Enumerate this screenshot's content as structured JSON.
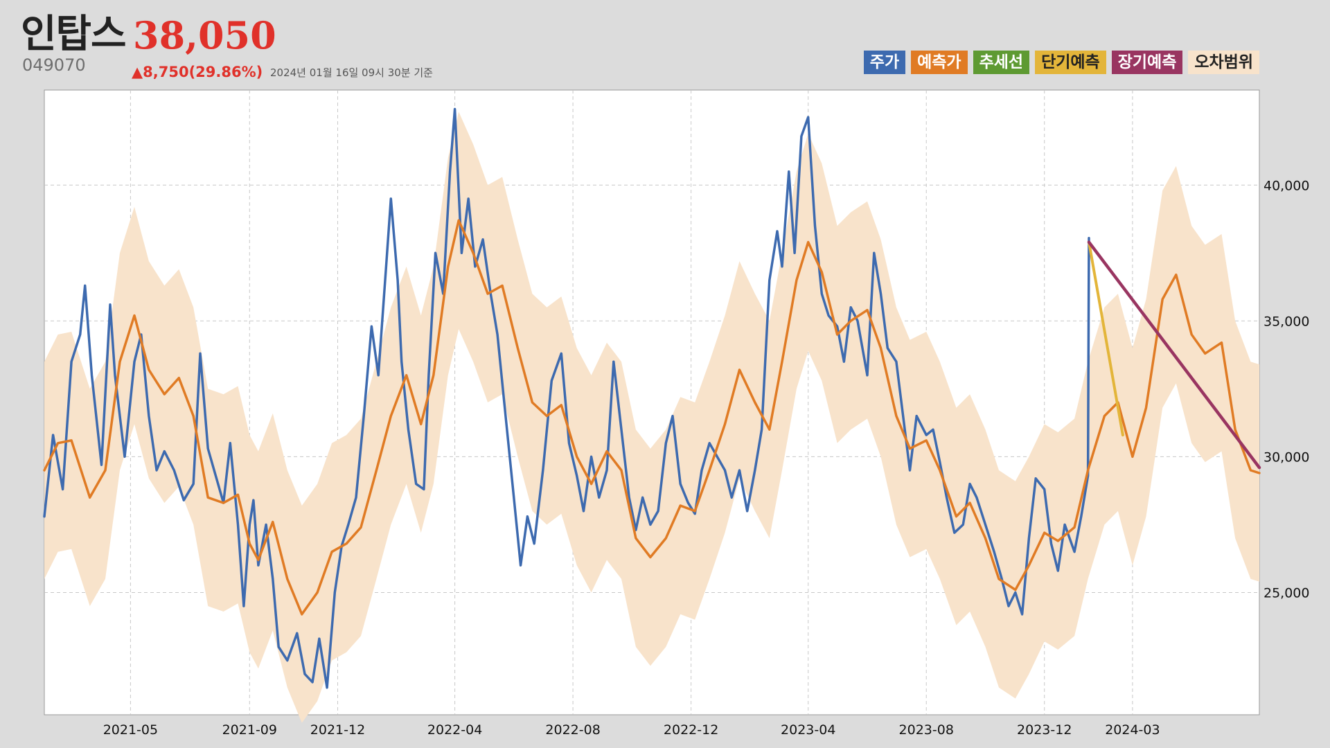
{
  "header": {
    "name": "인탑스",
    "price": "38,050",
    "code": "049070",
    "change": "▲8,750(29.86%)",
    "basis": "2024년 01월 16일 09시 30분 기준"
  },
  "legend": [
    {
      "label": "주가",
      "color": "#3d6aaf",
      "text_color": "#ffffff"
    },
    {
      "label": "예측가",
      "color": "#e07b24",
      "text_color": "#ffffff"
    },
    {
      "label": "추세선",
      "color": "#5e9a32",
      "text_color": "#ffffff"
    },
    {
      "label": "단기예측",
      "color": "#e3b53a",
      "text_color": "#222222"
    },
    {
      "label": "장기예측",
      "color": "#993561",
      "text_color": "#ffffff"
    },
    {
      "label": "오차범위",
      "color": "#f8e3cb",
      "text_color": "#222222"
    }
  ],
  "colors": {
    "price": "#3d6aaf",
    "forecast": "#e07b24",
    "band": "#f8e3cb",
    "short_term": "#e3b53a",
    "long_term": "#993561"
  },
  "chart_data": {
    "type": "line",
    "x_type": "date",
    "xlim": [
      "2021-02-01",
      "2024-07-10"
    ],
    "ylim": [
      20500,
      43500
    ],
    "y_ticks": [
      25000,
      30000,
      35000,
      40000
    ],
    "y_tick_labels": [
      "25,000",
      "30,000",
      "35,000",
      "40,000"
    ],
    "x_ticks": [
      "2021-05-01",
      "2021-09-01",
      "2021-12-01",
      "2022-04-01",
      "2022-08-01",
      "2022-12-01",
      "2023-04-01",
      "2023-08-01",
      "2023-12-01",
      "2024-03-01"
    ],
    "x_tick_labels": [
      "2021-05",
      "2021-09",
      "2021-12",
      "2022-04",
      "2022-08",
      "2022-12",
      "2023-04",
      "2023-08",
      "2023-12",
      "2024-03"
    ],
    "grid": true,
    "legend_position": "top-right",
    "series": [
      {
        "name": "주가",
        "points": [
          [
            "2021-02-01",
            27800
          ],
          [
            "2021-02-10",
            30800
          ],
          [
            "2021-02-20",
            28800
          ],
          [
            "2021-03-01",
            33500
          ],
          [
            "2021-03-10",
            34500
          ],
          [
            "2021-03-15",
            36300
          ],
          [
            "2021-03-22",
            33000
          ],
          [
            "2021-04-01",
            29700
          ],
          [
            "2021-04-10",
            35600
          ],
          [
            "2021-04-15",
            33000
          ],
          [
            "2021-04-25",
            30000
          ],
          [
            "2021-05-05",
            33500
          ],
          [
            "2021-05-12",
            34500
          ],
          [
            "2021-05-20",
            31500
          ],
          [
            "2021-05-28",
            29500
          ],
          [
            "2021-06-05",
            30200
          ],
          [
            "2021-06-15",
            29500
          ],
          [
            "2021-06-25",
            28400
          ],
          [
            "2021-07-05",
            29000
          ],
          [
            "2021-07-12",
            33800
          ],
          [
            "2021-07-20",
            30300
          ],
          [
            "2021-07-28",
            29300
          ],
          [
            "2021-08-05",
            28300
          ],
          [
            "2021-08-12",
            30500
          ],
          [
            "2021-08-20",
            27500
          ],
          [
            "2021-08-26",
            24500
          ],
          [
            "2021-09-01",
            27500
          ],
          [
            "2021-09-05",
            28400
          ],
          [
            "2021-09-10",
            26000
          ],
          [
            "2021-09-18",
            27500
          ],
          [
            "2021-09-25",
            25500
          ],
          [
            "2021-10-01",
            23000
          ],
          [
            "2021-10-10",
            22500
          ],
          [
            "2021-10-20",
            23500
          ],
          [
            "2021-10-28",
            22000
          ],
          [
            "2021-11-05",
            21700
          ],
          [
            "2021-11-12",
            23300
          ],
          [
            "2021-11-20",
            21500
          ],
          [
            "2021-11-28",
            25000
          ],
          [
            "2021-12-05",
            26700
          ],
          [
            "2021-12-12",
            27500
          ],
          [
            "2021-12-20",
            28500
          ],
          [
            "2021-12-28",
            31500
          ],
          [
            "2022-01-05",
            34800
          ],
          [
            "2022-01-12",
            33000
          ],
          [
            "2022-01-20",
            37000
          ],
          [
            "2022-01-25",
            39500
          ],
          [
            "2022-02-01",
            36500
          ],
          [
            "2022-02-05",
            33500
          ],
          [
            "2022-02-12",
            31000
          ],
          [
            "2022-02-20",
            29000
          ],
          [
            "2022-02-28",
            28800
          ],
          [
            "2022-03-05",
            33000
          ],
          [
            "2022-03-12",
            37500
          ],
          [
            "2022-03-20",
            36000
          ],
          [
            "2022-03-27",
            40500
          ],
          [
            "2022-04-01",
            42800
          ],
          [
            "2022-04-08",
            37500
          ],
          [
            "2022-04-15",
            39500
          ],
          [
            "2022-04-22",
            37000
          ],
          [
            "2022-04-30",
            38000
          ],
          [
            "2022-05-08",
            36000
          ],
          [
            "2022-05-15",
            34500
          ],
          [
            "2022-05-22",
            32000
          ],
          [
            "2022-06-01",
            28500
          ],
          [
            "2022-06-08",
            26000
          ],
          [
            "2022-06-15",
            27800
          ],
          [
            "2022-06-22",
            26800
          ],
          [
            "2022-07-01",
            29500
          ],
          [
            "2022-07-10",
            32800
          ],
          [
            "2022-07-20",
            33800
          ],
          [
            "2022-07-28",
            30500
          ],
          [
            "2022-08-05",
            29300
          ],
          [
            "2022-08-12",
            28000
          ],
          [
            "2022-08-20",
            30000
          ],
          [
            "2022-08-28",
            28500
          ],
          [
            "2022-09-05",
            29500
          ],
          [
            "2022-09-12",
            33500
          ],
          [
            "2022-09-20",
            31000
          ],
          [
            "2022-09-28",
            28500
          ],
          [
            "2022-10-05",
            27300
          ],
          [
            "2022-10-12",
            28500
          ],
          [
            "2022-10-20",
            27500
          ],
          [
            "2022-10-28",
            28000
          ],
          [
            "2022-11-05",
            30500
          ],
          [
            "2022-11-12",
            31500
          ],
          [
            "2022-11-20",
            29000
          ],
          [
            "2022-11-28",
            28300
          ],
          [
            "2022-12-05",
            27900
          ],
          [
            "2022-12-12",
            29500
          ],
          [
            "2022-12-20",
            30500
          ],
          [
            "2022-12-28",
            30000
          ],
          [
            "2023-01-05",
            29500
          ],
          [
            "2023-01-12",
            28500
          ],
          [
            "2023-01-20",
            29500
          ],
          [
            "2023-01-28",
            28000
          ],
          [
            "2023-02-05",
            29500
          ],
          [
            "2023-02-12",
            31000
          ],
          [
            "2023-02-20",
            36500
          ],
          [
            "2023-02-28",
            38300
          ],
          [
            "2023-03-05",
            37000
          ],
          [
            "2023-03-12",
            40500
          ],
          [
            "2023-03-18",
            37500
          ],
          [
            "2023-03-25",
            41800
          ],
          [
            "2023-04-01",
            42500
          ],
          [
            "2023-04-08",
            38500
          ],
          [
            "2023-04-15",
            36000
          ],
          [
            "2023-04-22",
            35200
          ],
          [
            "2023-05-01",
            34800
          ],
          [
            "2023-05-08",
            33500
          ],
          [
            "2023-05-15",
            35500
          ],
          [
            "2023-05-22",
            35000
          ],
          [
            "2023-06-01",
            33000
          ],
          [
            "2023-06-08",
            37500
          ],
          [
            "2023-06-15",
            36000
          ],
          [
            "2023-06-22",
            34000
          ],
          [
            "2023-07-01",
            33500
          ],
          [
            "2023-07-08",
            31500
          ],
          [
            "2023-07-15",
            29500
          ],
          [
            "2023-07-22",
            31500
          ],
          [
            "2023-08-01",
            30800
          ],
          [
            "2023-08-08",
            31000
          ],
          [
            "2023-08-15",
            29800
          ],
          [
            "2023-08-22",
            28500
          ],
          [
            "2023-08-30",
            27200
          ],
          [
            "2023-09-08",
            27500
          ],
          [
            "2023-09-15",
            29000
          ],
          [
            "2023-09-22",
            28500
          ],
          [
            "2023-10-01",
            27500
          ],
          [
            "2023-10-10",
            26500
          ],
          [
            "2023-10-18",
            25500
          ],
          [
            "2023-10-25",
            24500
          ],
          [
            "2023-11-01",
            25000
          ],
          [
            "2023-11-08",
            24200
          ],
          [
            "2023-11-15",
            27000
          ],
          [
            "2023-11-22",
            29200
          ],
          [
            "2023-12-01",
            28800
          ],
          [
            "2023-12-08",
            26800
          ],
          [
            "2023-12-15",
            25800
          ],
          [
            "2023-12-22",
            27500
          ],
          [
            "2024-01-01",
            26500
          ],
          [
            "2024-01-08",
            27800
          ],
          [
            "2024-01-15",
            29300
          ],
          [
            "2024-01-16",
            38050
          ]
        ]
      },
      {
        "name": "예측가",
        "points": [
          [
            "2021-02-01",
            29500
          ],
          [
            "2021-02-15",
            30500
          ],
          [
            "2021-03-01",
            30600
          ],
          [
            "2021-03-20",
            28500
          ],
          [
            "2021-04-05",
            29500
          ],
          [
            "2021-04-20",
            33500
          ],
          [
            "2021-05-05",
            35200
          ],
          [
            "2021-05-20",
            33200
          ],
          [
            "2021-06-05",
            32300
          ],
          [
            "2021-06-20",
            32900
          ],
          [
            "2021-07-05",
            31500
          ],
          [
            "2021-07-20",
            28500
          ],
          [
            "2021-08-05",
            28300
          ],
          [
            "2021-08-20",
            28600
          ],
          [
            "2021-09-01",
            26800
          ],
          [
            "2021-09-10",
            26200
          ],
          [
            "2021-09-25",
            27600
          ],
          [
            "2021-10-10",
            25500
          ],
          [
            "2021-10-25",
            24200
          ],
          [
            "2021-11-10",
            25000
          ],
          [
            "2021-11-25",
            26500
          ],
          [
            "2021-12-10",
            26800
          ],
          [
            "2021-12-25",
            27400
          ],
          [
            "2022-01-10",
            29500
          ],
          [
            "2022-01-25",
            31500
          ],
          [
            "2022-02-10",
            33000
          ],
          [
            "2022-02-25",
            31200
          ],
          [
            "2022-03-10",
            33000
          ],
          [
            "2022-03-25",
            37000
          ],
          [
            "2022-04-05",
            38700
          ],
          [
            "2022-04-20",
            37500
          ],
          [
            "2022-05-05",
            36000
          ],
          [
            "2022-05-20",
            36300
          ],
          [
            "2022-06-05",
            34000
          ],
          [
            "2022-06-20",
            32000
          ],
          [
            "2022-07-05",
            31500
          ],
          [
            "2022-07-20",
            31900
          ],
          [
            "2022-08-05",
            30000
          ],
          [
            "2022-08-20",
            29000
          ],
          [
            "2022-09-05",
            30200
          ],
          [
            "2022-09-20",
            29500
          ],
          [
            "2022-10-05",
            27000
          ],
          [
            "2022-10-20",
            26300
          ],
          [
            "2022-11-05",
            27000
          ],
          [
            "2022-11-20",
            28200
          ],
          [
            "2022-12-05",
            28000
          ],
          [
            "2022-12-20",
            29500
          ],
          [
            "2023-01-05",
            31200
          ],
          [
            "2023-01-20",
            33200
          ],
          [
            "2023-02-05",
            32000
          ],
          [
            "2023-02-20",
            31000
          ],
          [
            "2023-03-05",
            33500
          ],
          [
            "2023-03-20",
            36500
          ],
          [
            "2023-04-01",
            37900
          ],
          [
            "2023-04-15",
            36800
          ],
          [
            "2023-05-01",
            34500
          ],
          [
            "2023-05-15",
            35000
          ],
          [
            "2023-06-01",
            35400
          ],
          [
            "2023-06-15",
            34000
          ],
          [
            "2023-07-01",
            31500
          ],
          [
            "2023-07-15",
            30300
          ],
          [
            "2023-08-01",
            30600
          ],
          [
            "2023-08-15",
            29500
          ],
          [
            "2023-09-01",
            27800
          ],
          [
            "2023-09-15",
            28300
          ],
          [
            "2023-10-01",
            27000
          ],
          [
            "2023-10-15",
            25500
          ],
          [
            "2023-11-01",
            25100
          ],
          [
            "2023-11-15",
            26000
          ],
          [
            "2023-12-01",
            27200
          ],
          [
            "2023-12-15",
            26900
          ],
          [
            "2024-01-01",
            27400
          ],
          [
            "2024-01-15",
            29500
          ],
          [
            "2024-02-01",
            31500
          ],
          [
            "2024-02-15",
            32000
          ],
          [
            "2024-03-01",
            30000
          ],
          [
            "2024-03-15",
            31800
          ],
          [
            "2024-04-01",
            35800
          ],
          [
            "2024-04-15",
            36700
          ],
          [
            "2024-05-01",
            34500
          ],
          [
            "2024-05-15",
            33800
          ],
          [
            "2024-06-01",
            34200
          ],
          [
            "2024-06-15",
            31000
          ],
          [
            "2024-07-01",
            29500
          ],
          [
            "2024-07-10",
            29400
          ]
        ]
      },
      {
        "name": "단기예측",
        "points": [
          [
            "2024-01-16",
            37900
          ],
          [
            "2024-02-20",
            30800
          ]
        ]
      },
      {
        "name": "장기예측",
        "points": [
          [
            "2024-01-16",
            37900
          ],
          [
            "2024-07-10",
            29600
          ]
        ]
      }
    ],
    "band_width": 4000
  }
}
